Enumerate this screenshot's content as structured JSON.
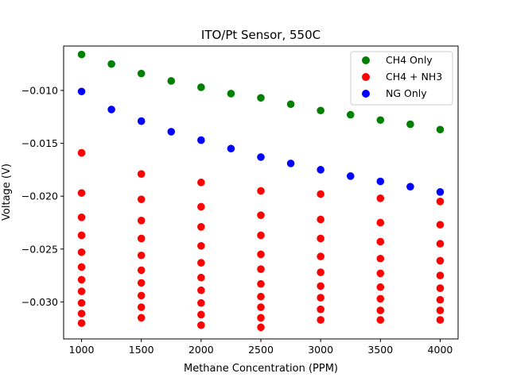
{
  "chart_data": {
    "type": "scatter",
    "title": "ITO/Pt Sensor, 550C",
    "xlabel": "Methane Concentration (PPM)",
    "ylabel": "Voltage (V)",
    "xlim": [
      850,
      4150
    ],
    "ylim": [
      -0.0335,
      -0.0058
    ],
    "xticks": [
      1000,
      1500,
      2000,
      2500,
      3000,
      3500,
      4000
    ],
    "xtick_labels": [
      "1000",
      "1500",
      "2000",
      "2500",
      "3000",
      "3500",
      "4000"
    ],
    "yticks": [
      -0.03,
      -0.025,
      -0.02,
      -0.015,
      -0.01
    ],
    "ytick_labels": [
      "−0.030",
      "−0.025",
      "−0.020",
      "−0.015",
      "−0.010"
    ],
    "grid": false,
    "legend_position": "top-right",
    "series": [
      {
        "name": "CH4 Only",
        "color": "#008000",
        "points": [
          [
            1000,
            -0.0066
          ],
          [
            1250,
            -0.0075
          ],
          [
            1500,
            -0.0084
          ],
          [
            1750,
            -0.0091
          ],
          [
            2000,
            -0.0097
          ],
          [
            2250,
            -0.0103
          ],
          [
            2500,
            -0.0107
          ],
          [
            2750,
            -0.0113
          ],
          [
            3000,
            -0.0119
          ],
          [
            3250,
            -0.0123
          ],
          [
            3500,
            -0.0128
          ],
          [
            3750,
            -0.0132
          ],
          [
            4000,
            -0.0137
          ]
        ]
      },
      {
        "name": "CH4 + NH3",
        "color": "#ff0000",
        "points": [
          [
            1000,
            -0.0159
          ],
          [
            1000,
            -0.0197
          ],
          [
            1000,
            -0.022
          ],
          [
            1000,
            -0.0237
          ],
          [
            1000,
            -0.0253
          ],
          [
            1000,
            -0.0267
          ],
          [
            1000,
            -0.0279
          ],
          [
            1000,
            -0.029
          ],
          [
            1000,
            -0.0301
          ],
          [
            1000,
            -0.0311
          ],
          [
            1000,
            -0.032
          ],
          [
            1500,
            -0.0179
          ],
          [
            1500,
            -0.0203
          ],
          [
            1500,
            -0.0223
          ],
          [
            1500,
            -0.024
          ],
          [
            1500,
            -0.0256
          ],
          [
            1500,
            -0.027
          ],
          [
            1500,
            -0.0282
          ],
          [
            1500,
            -0.0294
          ],
          [
            1500,
            -0.0305
          ],
          [
            1500,
            -0.0315
          ],
          [
            2000,
            -0.0187
          ],
          [
            2000,
            -0.021
          ],
          [
            2000,
            -0.0229
          ],
          [
            2000,
            -0.0247
          ],
          [
            2000,
            -0.0263
          ],
          [
            2000,
            -0.0277
          ],
          [
            2000,
            -0.0289
          ],
          [
            2000,
            -0.0301
          ],
          [
            2000,
            -0.0312
          ],
          [
            2000,
            -0.0322
          ],
          [
            2500,
            -0.0195
          ],
          [
            2500,
            -0.0218
          ],
          [
            2500,
            -0.0237
          ],
          [
            2500,
            -0.0255
          ],
          [
            2500,
            -0.0269
          ],
          [
            2500,
            -0.0283
          ],
          [
            2500,
            -0.0295
          ],
          [
            2500,
            -0.0305
          ],
          [
            2500,
            -0.0315
          ],
          [
            2500,
            -0.0324
          ],
          [
            3000,
            -0.0198
          ],
          [
            3000,
            -0.0222
          ],
          [
            3000,
            -0.024
          ],
          [
            3000,
            -0.0257
          ],
          [
            3000,
            -0.0272
          ],
          [
            3000,
            -0.0285
          ],
          [
            3000,
            -0.0296
          ],
          [
            3000,
            -0.0307
          ],
          [
            3000,
            -0.0317
          ],
          [
            3500,
            -0.0202
          ],
          [
            3500,
            -0.0225
          ],
          [
            3500,
            -0.0243
          ],
          [
            3500,
            -0.0259
          ],
          [
            3500,
            -0.0273
          ],
          [
            3500,
            -0.0286
          ],
          [
            3500,
            -0.0297
          ],
          [
            3500,
            -0.0308
          ],
          [
            3500,
            -0.0317
          ],
          [
            4000,
            -0.0205
          ],
          [
            4000,
            -0.0227
          ],
          [
            4000,
            -0.0245
          ],
          [
            4000,
            -0.0261
          ],
          [
            4000,
            -0.0275
          ],
          [
            4000,
            -0.0287
          ],
          [
            4000,
            -0.0298
          ],
          [
            4000,
            -0.0308
          ],
          [
            4000,
            -0.0317
          ]
        ]
      },
      {
        "name": "NG Only",
        "color": "#0000ff",
        "points": [
          [
            1000,
            -0.0101
          ],
          [
            1250,
            -0.0118
          ],
          [
            1500,
            -0.0129
          ],
          [
            1750,
            -0.0139
          ],
          [
            2000,
            -0.0147
          ],
          [
            2250,
            -0.0155
          ],
          [
            2500,
            -0.0163
          ],
          [
            2750,
            -0.0169
          ],
          [
            3000,
            -0.0175
          ],
          [
            3250,
            -0.0181
          ],
          [
            3500,
            -0.0186
          ],
          [
            3750,
            -0.0191
          ],
          [
            4000,
            -0.0196
          ]
        ]
      }
    ]
  }
}
